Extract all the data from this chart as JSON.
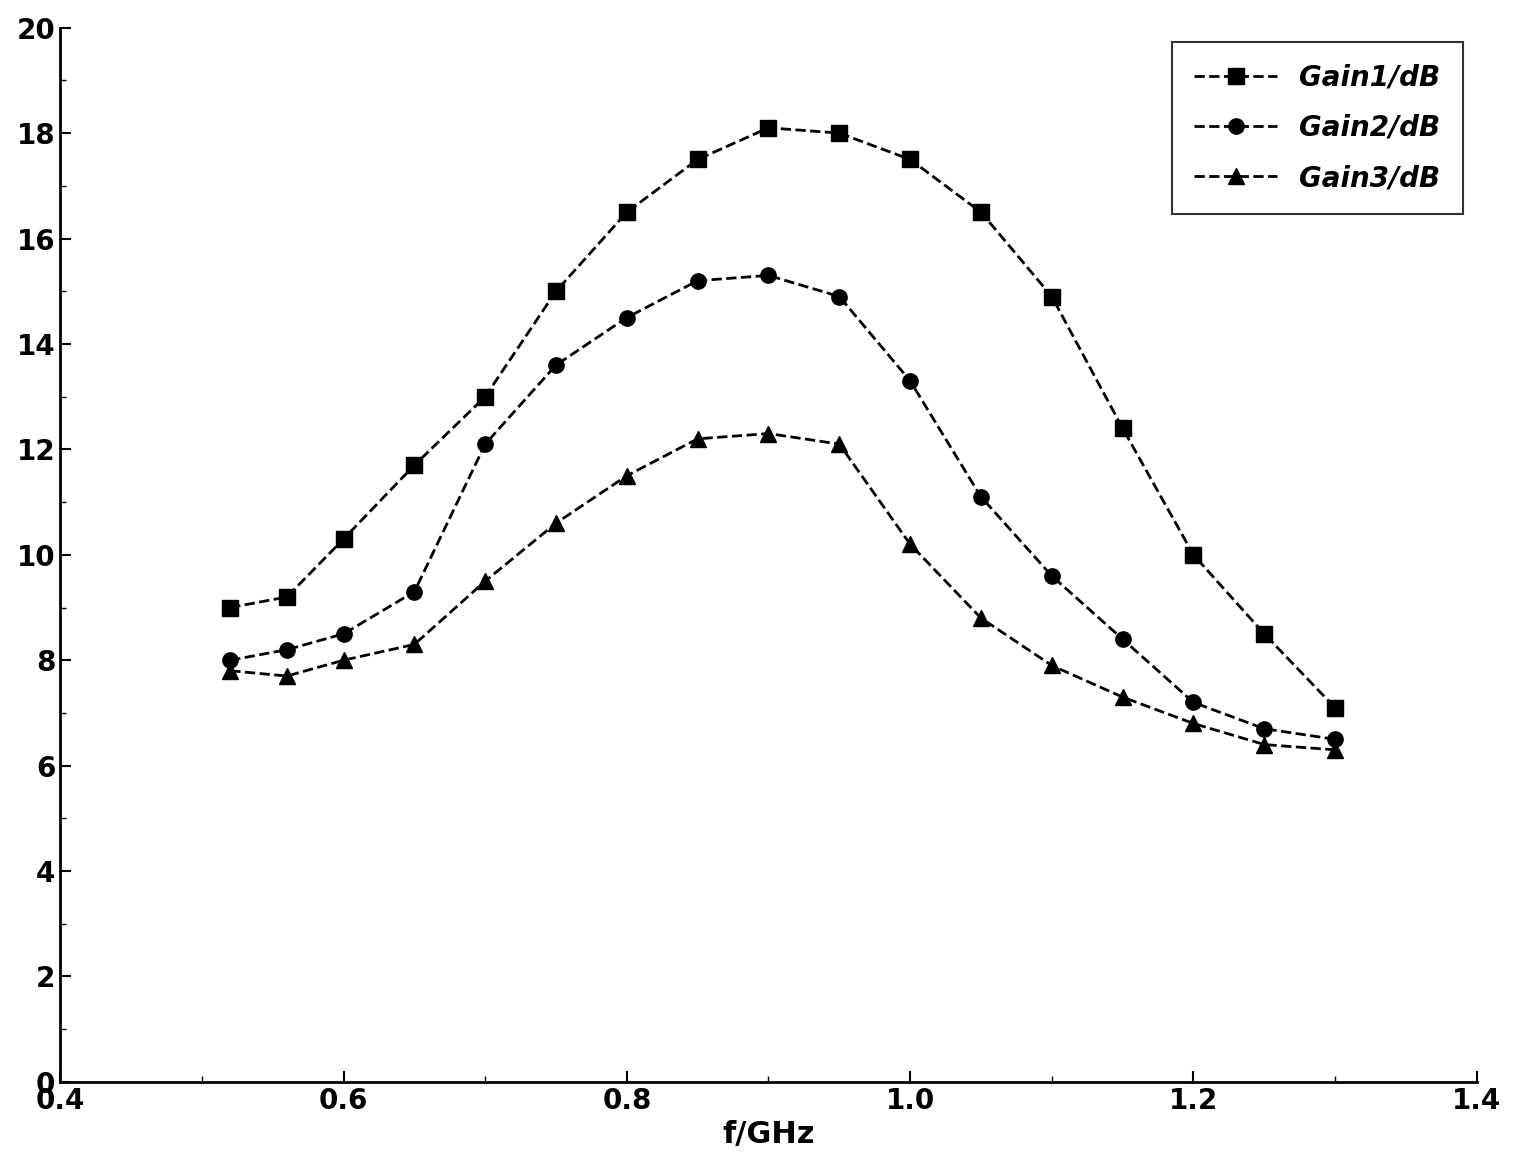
{
  "gain1_x": [
    0.52,
    0.56,
    0.6,
    0.65,
    0.7,
    0.75,
    0.8,
    0.85,
    0.9,
    0.95,
    1.0,
    1.05,
    1.1,
    1.15,
    1.2,
    1.25,
    1.3
  ],
  "gain1_y": [
    9.0,
    9.2,
    10.3,
    11.7,
    13.0,
    15.0,
    16.5,
    17.5,
    18.1,
    18.0,
    17.5,
    16.5,
    14.9,
    12.4,
    10.0,
    8.5,
    7.1
  ],
  "gain2_x": [
    0.52,
    0.56,
    0.6,
    0.65,
    0.7,
    0.75,
    0.8,
    0.85,
    0.9,
    0.95,
    1.0,
    1.05,
    1.1,
    1.15,
    1.2,
    1.25,
    1.3
  ],
  "gain2_y": [
    8.0,
    8.2,
    8.5,
    9.3,
    12.1,
    13.6,
    14.5,
    15.2,
    15.3,
    14.9,
    13.3,
    11.1,
    9.6,
    8.4,
    7.2,
    6.7,
    6.5
  ],
  "gain3_x": [
    0.52,
    0.56,
    0.6,
    0.65,
    0.7,
    0.75,
    0.8,
    0.85,
    0.9,
    0.95,
    1.0,
    1.05,
    1.1,
    1.15,
    1.2,
    1.25,
    1.3
  ],
  "gain3_y": [
    7.8,
    7.7,
    8.0,
    8.3,
    9.5,
    10.6,
    11.5,
    12.2,
    12.3,
    12.1,
    10.2,
    8.8,
    7.9,
    7.3,
    6.8,
    6.4,
    6.3
  ],
  "xlabel": "f/GHz",
  "xlim": [
    0.4,
    1.4
  ],
  "ylim": [
    0,
    20
  ],
  "xticks": [
    0.4,
    0.6,
    0.8,
    1.0,
    1.2,
    1.4
  ],
  "yticks": [
    0,
    2,
    4,
    6,
    8,
    10,
    12,
    14,
    16,
    18,
    20
  ],
  "legend_labels": [
    "Gain1/dB",
    "Gain2/dB",
    "Gain3/dB"
  ],
  "line_color": "#000000",
  "marker_size": 11,
  "line_width": 2.0,
  "font_size_label": 22,
  "font_size_tick": 20,
  "font_size_legend": 20,
  "background_color": "#ffffff"
}
